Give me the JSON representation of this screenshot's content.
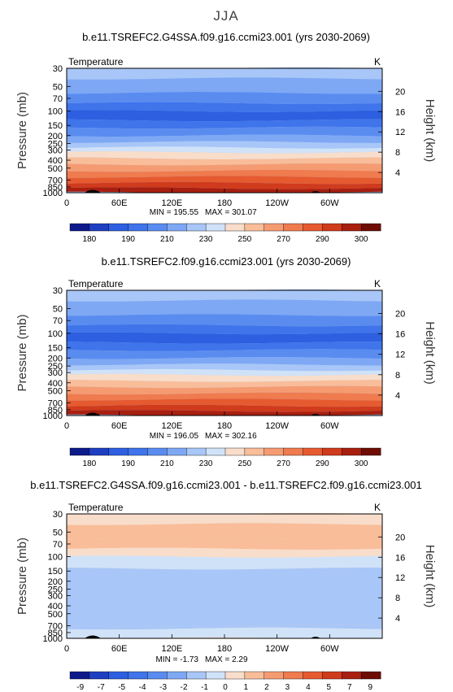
{
  "season": "JJA",
  "chart_data": [
    {
      "type": "heatmap",
      "title": "b.e11.TSREFC2.G4SSA.f09.g16.ccmi23.001 (yrs 2030-2069)",
      "variable": "Temperature",
      "units": "K",
      "ylabel": "Pressure (mb)",
      "y2label": "Height (km)",
      "x_ticks": [
        "0",
        "60E",
        "120E",
        "180",
        "120W",
        "60W"
      ],
      "y_ticks": [
        "30",
        "50",
        "70",
        "100",
        "150",
        "200",
        "250",
        "300",
        "400",
        "500",
        "700",
        "850",
        "1000"
      ],
      "y2_ticks": [
        "20",
        "16",
        "12",
        "8",
        "4"
      ],
      "min_label": "MIN = 195.55",
      "max_label": "MAX = 301.07",
      "colorbar_labels": [
        "180",
        "190",
        "210",
        "230",
        "250",
        "270",
        "290",
        "300"
      ],
      "colorbar_colors": [
        "#0d1a8a",
        "#1f3fc2",
        "#2d5fe0",
        "#3f74ea",
        "#5a8cf0",
        "#7ea8f4",
        "#a8c6f7",
        "#d0e2f8",
        "#f8ddca",
        "#f9bd9a",
        "#f59b72",
        "#ef7b4e",
        "#e65a30",
        "#cf3b1c",
        "#a81f10",
        "#6e0d05"
      ],
      "profile": [
        {
          "p": 30,
          "level": 6
        },
        {
          "p": 40,
          "level": 5
        },
        {
          "p": 60,
          "level": 4
        },
        {
          "p": 80,
          "level": 3
        },
        {
          "p": 100,
          "level": 2
        },
        {
          "p": 130,
          "level": 3
        },
        {
          "p": 160,
          "level": 4
        },
        {
          "p": 200,
          "level": 5
        },
        {
          "p": 240,
          "level": 6
        },
        {
          "p": 280,
          "level": 7
        },
        {
          "p": 320,
          "level": 8
        },
        {
          "p": 380,
          "level": 9
        },
        {
          "p": 450,
          "level": 10
        },
        {
          "p": 540,
          "level": 11
        },
        {
          "p": 640,
          "level": 12
        },
        {
          "p": 760,
          "level": 13
        },
        {
          "p": 880,
          "level": 14
        },
        {
          "p": 1000,
          "level": 14
        }
      ]
    },
    {
      "type": "heatmap",
      "title": "b.e11.TSREFC2.f09.g16.ccmi23.001 (yrs 2030-2069)",
      "variable": "Temperature",
      "units": "K",
      "ylabel": "Pressure (mb)",
      "y2label": "Height (km)",
      "x_ticks": [
        "0",
        "60E",
        "120E",
        "180",
        "120W",
        "60W"
      ],
      "y_ticks": [
        "30",
        "50",
        "70",
        "100",
        "150",
        "200",
        "250",
        "300",
        "400",
        "500",
        "700",
        "850",
        "1000"
      ],
      "y2_ticks": [
        "20",
        "16",
        "12",
        "8",
        "4"
      ],
      "min_label": "MIN = 196.05",
      "max_label": "MAX = 302.16",
      "colorbar_labels": [
        "180",
        "190",
        "210",
        "230",
        "250",
        "270",
        "290",
        "300"
      ],
      "colorbar_colors": [
        "#0d1a8a",
        "#1f3fc2",
        "#2d5fe0",
        "#3f74ea",
        "#5a8cf0",
        "#7ea8f4",
        "#a8c6f7",
        "#d0e2f8",
        "#f8ddca",
        "#f9bd9a",
        "#f59b72",
        "#ef7b4e",
        "#e65a30",
        "#cf3b1c",
        "#a81f10",
        "#6e0d05"
      ],
      "profile": [
        {
          "p": 30,
          "level": 6
        },
        {
          "p": 40,
          "level": 5
        },
        {
          "p": 60,
          "level": 4
        },
        {
          "p": 80,
          "level": 3
        },
        {
          "p": 100,
          "level": 2
        },
        {
          "p": 130,
          "level": 3
        },
        {
          "p": 160,
          "level": 4
        },
        {
          "p": 200,
          "level": 5
        },
        {
          "p": 240,
          "level": 6
        },
        {
          "p": 280,
          "level": 7
        },
        {
          "p": 320,
          "level": 8
        },
        {
          "p": 380,
          "level": 9
        },
        {
          "p": 450,
          "level": 10
        },
        {
          "p": 540,
          "level": 11
        },
        {
          "p": 640,
          "level": 12
        },
        {
          "p": 760,
          "level": 13
        },
        {
          "p": 880,
          "level": 14
        },
        {
          "p": 1000,
          "level": 14
        }
      ]
    },
    {
      "type": "heatmap",
      "title": "b.e11.TSREFC2.G4SSA.f09.g16.ccmi23.001 - b.e11.TSREFC2.f09.g16.ccmi23.001",
      "variable": "Temperature",
      "units": "K",
      "ylabel": "Pressure (mb)",
      "y2label": "Height (km)",
      "x_ticks": [
        "0",
        "60E",
        "120E",
        "180",
        "120W",
        "60W"
      ],
      "y_ticks": [
        "30",
        "50",
        "70",
        "100",
        "150",
        "200",
        "250",
        "300",
        "400",
        "500",
        "700",
        "850",
        "1000"
      ],
      "y2_ticks": [
        "20",
        "16",
        "12",
        "8",
        "4"
      ],
      "min_label": "MIN =    -1.73",
      "max_label": "MAX =    2.29",
      "colorbar_labels": [
        "-9",
        "-7",
        "-5",
        "-4",
        "-3",
        "-2",
        "-1",
        "0",
        "1",
        "2",
        "3",
        "4",
        "5",
        "7",
        "9"
      ],
      "colorbar_colors": [
        "#0d1a8a",
        "#1f3fc2",
        "#2d5fe0",
        "#3f74ea",
        "#5a8cf0",
        "#7ea8f4",
        "#a8c6f7",
        "#d0e2f8",
        "#f8ddca",
        "#f9bd9a",
        "#f59b72",
        "#ef7b4e",
        "#e65a30",
        "#cf3b1c",
        "#a81f10",
        "#6e0d05"
      ],
      "profile": [
        {
          "p": 30,
          "level": 8
        },
        {
          "p": 40,
          "level": 9
        },
        {
          "p": 60,
          "level": 9
        },
        {
          "p": 80,
          "level": 8
        },
        {
          "p": 100,
          "level": 7
        },
        {
          "p": 140,
          "level": 6
        },
        {
          "p": 700,
          "level": 6
        },
        {
          "p": 760,
          "level": 7
        },
        {
          "p": 1000,
          "level": 7
        }
      ]
    }
  ]
}
